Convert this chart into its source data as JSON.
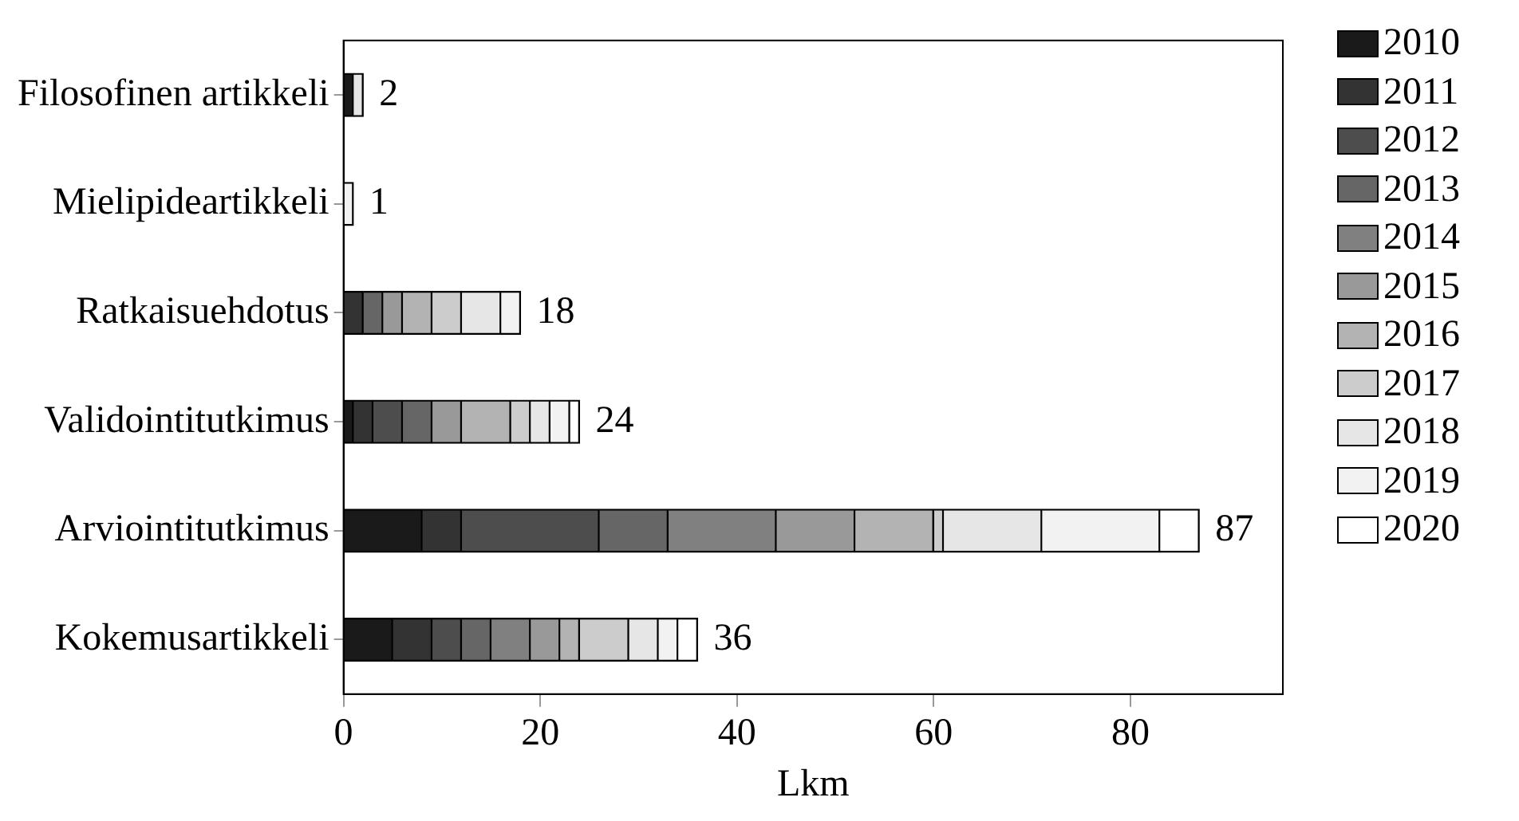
{
  "chart_data": {
    "type": "bar",
    "orientation": "horizontal",
    "stacked": true,
    "xlabel": "Lkm",
    "categories": [
      "Filosofinen artikkeli",
      "Mielipideartikkeli",
      "Ratkaisuehdotus",
      "Validointitutkimus",
      "Arviointitutkimus",
      "Kokemusartikkeli"
    ],
    "series": [
      {
        "name": "2010",
        "color": "#1a1a1a",
        "values": [
          1,
          0,
          0,
          1,
          8,
          5
        ]
      },
      {
        "name": "2011",
        "color": "#333333",
        "values": [
          0,
          0,
          2,
          2,
          4,
          4
        ]
      },
      {
        "name": "2012",
        "color": "#4d4d4d",
        "values": [
          0,
          0,
          0,
          3,
          14,
          3
        ]
      },
      {
        "name": "2013",
        "color": "#666666",
        "values": [
          0,
          0,
          2,
          3,
          7,
          3
        ]
      },
      {
        "name": "2014",
        "color": "#808080",
        "values": [
          0,
          0,
          0,
          0,
          11,
          4
        ]
      },
      {
        "name": "2015",
        "color": "#999999",
        "values": [
          0,
          0,
          2,
          3,
          8,
          3
        ]
      },
      {
        "name": "2016",
        "color": "#b3b3b3",
        "values": [
          0,
          0,
          3,
          5,
          8,
          2
        ]
      },
      {
        "name": "2017",
        "color": "#cccccc",
        "values": [
          0,
          0,
          3,
          2,
          1,
          5
        ]
      },
      {
        "name": "2018",
        "color": "#e6e6e6",
        "values": [
          1,
          0,
          4,
          2,
          10,
          3
        ]
      },
      {
        "name": "2019",
        "color": "#f2f2f2",
        "values": [
          0,
          1,
          2,
          2,
          12,
          2
        ]
      },
      {
        "name": "2020",
        "color": "#ffffff",
        "values": [
          0,
          0,
          0,
          1,
          4,
          2
        ]
      }
    ],
    "totals": [
      "2",
      "1",
      "18",
      "24",
      "87",
      "36"
    ],
    "xlim": [
      0,
      95.5
    ],
    "xticks": [
      0,
      20,
      40,
      60,
      80
    ],
    "grid": false,
    "legend": "right"
  }
}
